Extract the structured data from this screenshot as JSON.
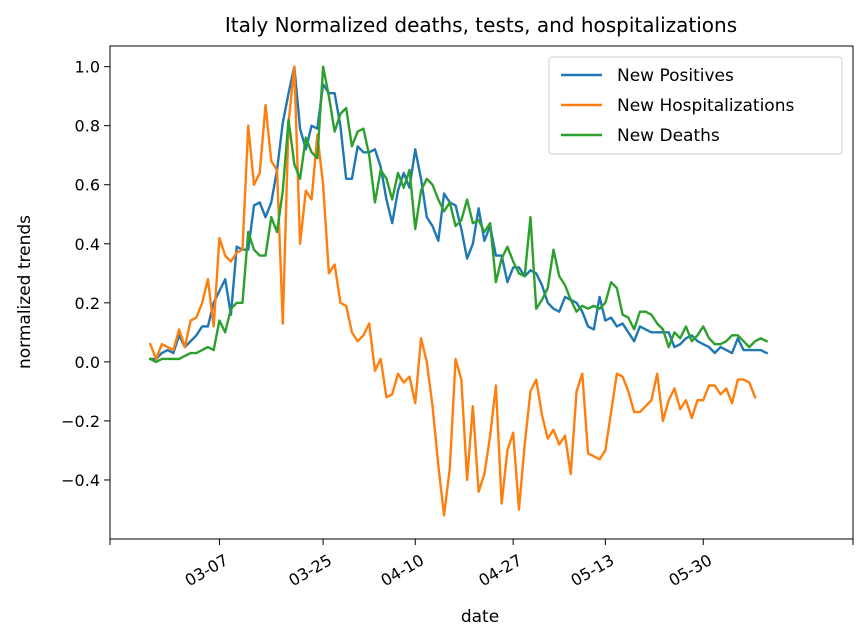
{
  "chart_data": {
    "type": "line",
    "title": "Italy Normalized deaths, tests, and hospitalizations",
    "xlabel": "date",
    "ylabel": "normalized trends",
    "ylim": [
      -0.6,
      1.07
    ],
    "yticks": [
      -0.4,
      -0.2,
      0.0,
      0.2,
      0.4,
      0.6,
      0.8,
      1.0
    ],
    "ytick_labels": [
      "−0.4",
      "−0.2",
      "0.0",
      "0.2",
      "0.4",
      "0.6",
      "0.8",
      "1.0"
    ],
    "xlim": [
      "2020-02-17",
      "2020-06-25"
    ],
    "xticks": [
      "2020-03-07",
      "2020-03-25",
      "2020-04-10",
      "2020-04-27",
      "2020-05-13",
      "2020-05-30"
    ],
    "xtick_labels": [
      "03-07",
      "03-25",
      "04-10",
      "04-27",
      "05-13",
      "05-30"
    ],
    "x_start": "2020-02-24",
    "legend_position": "top-right",
    "grid": false,
    "series": [
      {
        "name": "New Positives",
        "color": "#1f77b4",
        "values": [
          0.01,
          0.01,
          0.03,
          0.04,
          0.03,
          0.09,
          0.05,
          0.07,
          0.09,
          0.12,
          0.12,
          0.2,
          0.24,
          0.28,
          0.16,
          0.39,
          0.38,
          0.38,
          0.53,
          0.54,
          0.49,
          0.54,
          0.65,
          0.81,
          0.91,
          1.0,
          0.79,
          0.72,
          0.8,
          0.79,
          0.94,
          0.91,
          0.91,
          0.8,
          0.62,
          0.62,
          0.73,
          0.71,
          0.71,
          0.72,
          0.66,
          0.55,
          0.47,
          0.58,
          0.64,
          0.59,
          0.72,
          0.62,
          0.49,
          0.46,
          0.41,
          0.57,
          0.54,
          0.53,
          0.45,
          0.35,
          0.4,
          0.52,
          0.41,
          0.46,
          0.36,
          0.36,
          0.27,
          0.32,
          0.32,
          0.29,
          0.31,
          0.3,
          0.26,
          0.2,
          0.18,
          0.17,
          0.22,
          0.21,
          0.2,
          0.17,
          0.12,
          0.11,
          0.22,
          0.14,
          0.15,
          0.12,
          0.13,
          0.1,
          0.07,
          0.12,
          0.11,
          0.1,
          0.1,
          0.1,
          0.1,
          0.05,
          0.06,
          0.08,
          0.09,
          0.07,
          0.06,
          0.05,
          0.03,
          0.05,
          0.04,
          0.03,
          0.08,
          0.04,
          0.04,
          0.04,
          0.04,
          0.03
        ]
      },
      {
        "name": "New Hospitalizations",
        "color": "#ff7f0e",
        "values": [
          0.06,
          0.01,
          0.06,
          0.05,
          0.04,
          0.11,
          0.05,
          0.14,
          0.15,
          0.2,
          0.28,
          0.12,
          0.42,
          0.36,
          0.34,
          0.37,
          0.38,
          0.8,
          0.6,
          0.64,
          0.87,
          0.68,
          0.65,
          0.13,
          0.81,
          1.0,
          0.4,
          0.58,
          0.55,
          0.77,
          0.6,
          0.3,
          0.33,
          0.2,
          0.19,
          0.1,
          0.07,
          0.09,
          0.13,
          -0.03,
          0.01,
          -0.12,
          -0.11,
          -0.04,
          -0.07,
          -0.05,
          -0.14,
          0.08,
          0.0,
          -0.15,
          -0.35,
          -0.52,
          -0.36,
          0.01,
          -0.06,
          -0.4,
          -0.15,
          -0.44,
          -0.38,
          -0.25,
          -0.08,
          -0.48,
          -0.3,
          -0.24,
          -0.5,
          -0.28,
          -0.1,
          -0.06,
          -0.18,
          -0.26,
          -0.23,
          -0.28,
          -0.25,
          -0.38,
          -0.1,
          -0.04,
          -0.31,
          -0.32,
          -0.33,
          -0.3,
          -0.17,
          -0.04,
          -0.05,
          -0.1,
          -0.17,
          -0.17,
          -0.15,
          -0.13,
          -0.04,
          -0.2,
          -0.13,
          -0.09,
          -0.16,
          -0.13,
          -0.19,
          -0.13,
          -0.13,
          -0.08,
          -0.08,
          -0.11,
          -0.09,
          -0.14,
          -0.06,
          -0.06,
          -0.07,
          -0.12
        ]
      },
      {
        "name": "New Deaths",
        "color": "#2ca02c",
        "values": [
          0.01,
          0.0,
          0.01,
          0.01,
          0.01,
          0.01,
          0.02,
          0.03,
          0.03,
          0.04,
          0.05,
          0.04,
          0.14,
          0.1,
          0.18,
          0.2,
          0.2,
          0.44,
          0.38,
          0.36,
          0.36,
          0.49,
          0.44,
          0.58,
          0.82,
          0.67,
          0.62,
          0.76,
          0.71,
          0.69,
          1.0,
          0.9,
          0.78,
          0.84,
          0.86,
          0.73,
          0.78,
          0.79,
          0.7,
          0.54,
          0.65,
          0.62,
          0.55,
          0.64,
          0.59,
          0.65,
          0.45,
          0.58,
          0.62,
          0.6,
          0.55,
          0.51,
          0.54,
          0.46,
          0.48,
          0.55,
          0.47,
          0.48,
          0.44,
          0.47,
          0.27,
          0.35,
          0.39,
          0.34,
          0.3,
          0.29,
          0.49,
          0.18,
          0.21,
          0.25,
          0.38,
          0.29,
          0.26,
          0.21,
          0.17,
          0.19,
          0.18,
          0.19,
          0.18,
          0.2,
          0.27,
          0.25,
          0.16,
          0.15,
          0.11,
          0.17,
          0.17,
          0.16,
          0.13,
          0.11,
          0.05,
          0.1,
          0.08,
          0.12,
          0.07,
          0.09,
          0.12,
          0.08,
          0.06,
          0.06,
          0.07,
          0.09,
          0.09,
          0.07,
          0.05,
          0.07,
          0.08,
          0.07
        ]
      }
    ]
  }
}
